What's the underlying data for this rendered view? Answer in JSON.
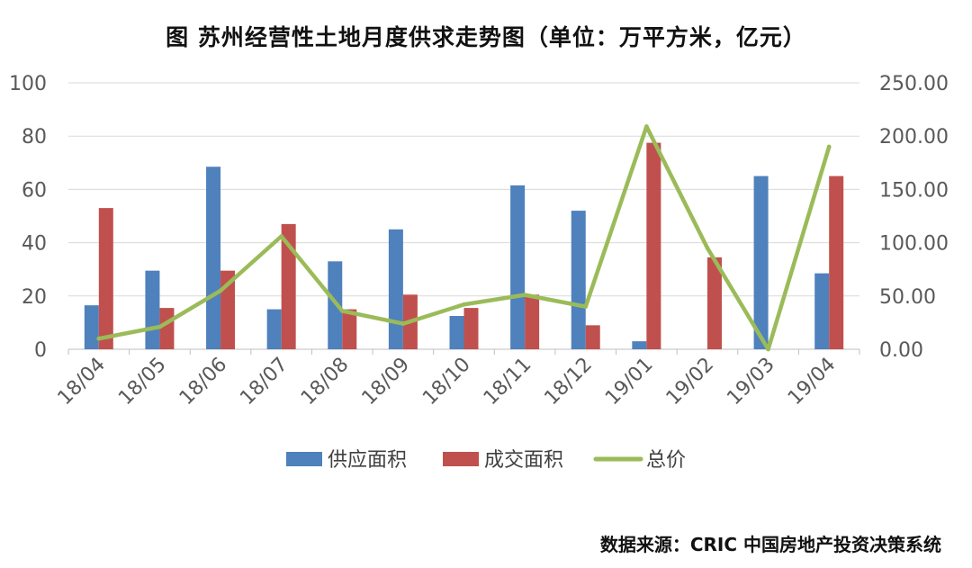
{
  "chart_data": {
    "type": "bar",
    "title": "图  苏州经营性土地月度供求走势图（单位：万平方米，亿元）",
    "categories": [
      "18/04",
      "18/05",
      "18/06",
      "18/07",
      "18/08",
      "18/09",
      "18/10",
      "18/11",
      "18/12",
      "19/01",
      "19/02",
      "19/03",
      "19/04"
    ],
    "series": [
      {
        "name": "供应面积",
        "type": "bar",
        "axis": "left",
        "color": "#4F81BD",
        "values": [
          16.5,
          29.5,
          68.5,
          15,
          33,
          45,
          12.5,
          61.5,
          52,
          3,
          0,
          65,
          28.5
        ]
      },
      {
        "name": "成交面积",
        "type": "bar",
        "axis": "left",
        "color": "#C0504D",
        "values": [
          53,
          15.5,
          29.5,
          47,
          15,
          20.5,
          15.5,
          20.5,
          9,
          77.5,
          34.5,
          0,
          65
        ]
      },
      {
        "name": "总价",
        "type": "line",
        "axis": "right",
        "color": "#9BBB59",
        "values": [
          10,
          21,
          55,
          106,
          36,
          24,
          42,
          51,
          40,
          209,
          95,
          0,
          190
        ]
      }
    ],
    "yleft": {
      "ylim": [
        0,
        100
      ],
      "ticks": [
        0,
        20,
        40,
        60,
        80,
        100
      ],
      "tick_labels": [
        "0",
        "20",
        "40",
        "60",
        "80",
        "100"
      ]
    },
    "yright": {
      "ylim": [
        0,
        250
      ],
      "ticks": [
        0,
        50,
        100,
        150,
        200,
        250
      ],
      "tick_labels": [
        "0.00",
        "50.00",
        "100.00",
        "150.00",
        "200.00",
        "250.00"
      ]
    },
    "grid": "horizontal",
    "legend_position": "bottom",
    "xlabel": "",
    "ylabel": "",
    "source": "数据来源：CRIC 中国房地产投资决策系统"
  }
}
